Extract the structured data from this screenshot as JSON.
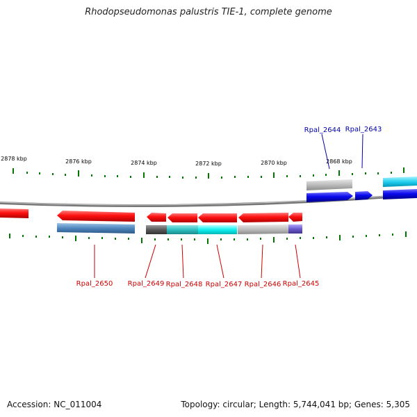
{
  "title": "Rhodopseudomonas palustris TIE-1, complete genome",
  "footer": {
    "accession": "Accession: NC_011004",
    "summary": "Topology: circular; Length: 5,744,041 bp; Genes: 5,305"
  },
  "ruler": [
    {
      "label": "2878 kbp",
      "name": "tick-label-2878"
    },
    {
      "label": "2876 kbp",
      "name": "tick-label-2876"
    },
    {
      "label": "2874 kbp",
      "name": "tick-label-2874"
    },
    {
      "label": "2872 kbp",
      "name": "tick-label-2872"
    },
    {
      "label": "2870 kbp",
      "name": "tick-label-2870"
    },
    {
      "label": "2868 kbp",
      "name": "tick-label-2868"
    }
  ],
  "gene_labels": {
    "top": [
      "Rpal_2644",
      "Rpal_2643"
    ],
    "bottom": [
      "Rpal_2650",
      "Rpal_2649",
      "Rpal_2648",
      "Rpal_2647",
      "Rpal_2646",
      "Rpal_2645"
    ]
  },
  "colors": {
    "forward": "#0000ee",
    "reverse": "#ff0000",
    "top_label": "#0000aa",
    "bottom_label": "#cc0000",
    "tick": "#007700",
    "backbone": "#888888"
  }
}
